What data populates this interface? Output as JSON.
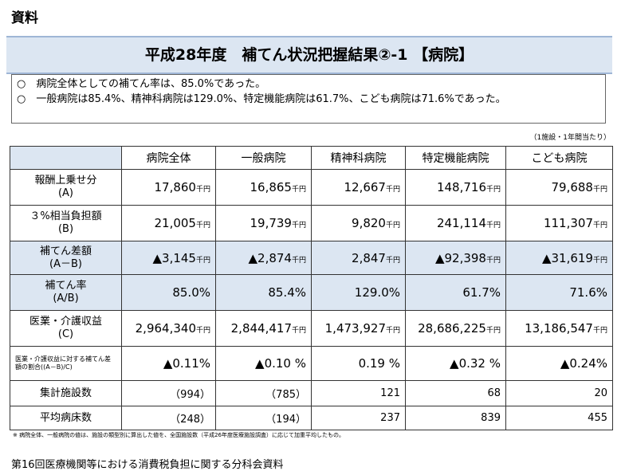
{
  "header": {
    "label": "資料",
    "title": "平成28年度　補てん状況把握結果②-1 【病院】"
  },
  "summary": [
    "○　病院全体としての補てん率は、85.0%であった。",
    "○　一般病院は85.4%、精神科病院は129.0%、特定機能病院は61.7%、こども病院は71.6%であった。"
  ],
  "note": "（1施設・1年間当たり）",
  "table": {
    "columns": [
      "病院全体",
      "一般病院",
      "精神科病院",
      "特定機能病院",
      "こども病院"
    ],
    "rows": [
      {
        "label": "報酬上乗せ分",
        "sub": "(A)",
        "unit": "千円",
        "cells": [
          "17,860",
          "16,865",
          "12,667",
          "148,716",
          "79,688"
        ]
      },
      {
        "label": "３%相当負担額",
        "sub": "(B)",
        "unit": "千円",
        "cells": [
          "21,005",
          "19,739",
          "9,820",
          "241,114",
          "111,307"
        ]
      },
      {
        "label": "補てん差額",
        "sub": "(A－B)",
        "unit": "千円",
        "cells": [
          "▲3,145",
          "▲2,874",
          "2,847",
          "▲92,398",
          "▲31,619"
        ]
      },
      {
        "label": "補てん率",
        "sub": "(A/B)",
        "cells": [
          "85.0%",
          "85.4%",
          "129.0%",
          "61.7%",
          "71.6%"
        ]
      },
      {
        "label": "医業・介護収益",
        "sub": "(C)",
        "unit": "千円",
        "cells": [
          "2,964,340",
          "2,844,417",
          "1,473,927",
          "28,686,225",
          "13,186,547"
        ]
      },
      {
        "label": "医業・介護収益に対する補てん差額の割合((A－B)/C)",
        "cells": [
          "▲0.11%",
          "▲0.10 %",
          "0.19 %",
          "▲0.32 %",
          "▲0.24%"
        ]
      },
      {
        "label": "集計施設数",
        "cells": [
          "（994）",
          "（785）",
          "121",
          "68",
          "20"
        ]
      },
      {
        "label": "平均病床数",
        "cells": [
          "（248）",
          "（194）",
          "237",
          "839",
          "455"
        ]
      }
    ]
  },
  "footnote": "※ 病院全体、一般病院の値は、施設の類型別に算出した値を、全国施設数（平成26年度医療施設調査）に応じて加重平均したもの。",
  "footer": "第16回医療機関等における消費税負担に関する分科会資料"
}
